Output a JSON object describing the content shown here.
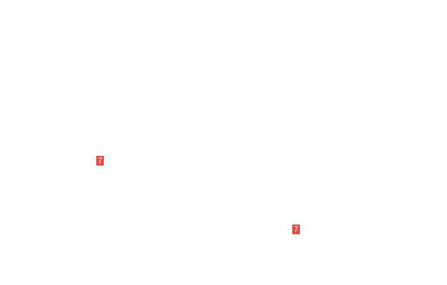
{
  "badges": [
    {
      "label": "7",
      "color": "#e8473b"
    },
    {
      "label": "7",
      "color": "#e8473b"
    }
  ]
}
